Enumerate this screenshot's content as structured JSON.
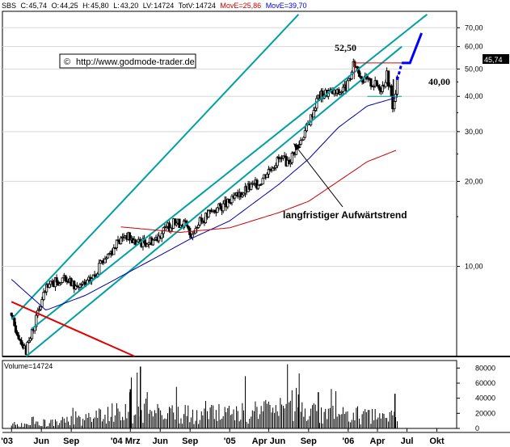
{
  "header": {
    "symbol": "SBS",
    "c_label": "C:",
    "c_value": "45,74",
    "o_label": "O:",
    "o_value": "44,25",
    "h_label": "H:",
    "h_value": "45,80",
    "l_label": "L:",
    "l_value": "43,20",
    "lv_label": "LV:",
    "lv_value": "14724",
    "totv_label": "TotV:",
    "totv_value": "14724",
    "ma1_label": "MovE=",
    "ma1_value": "25,86",
    "ma2_label": "MovE=",
    "ma2_value": "39,70"
  },
  "watermark": {
    "symbol": "©",
    "text": "http://www.godmode-trader.de"
  },
  "annotations": [
    {
      "text": "52,50"
    },
    {
      "text": "40,00"
    },
    {
      "text": "langfristiger Aufwärtstrend"
    }
  ],
  "last_price_tag": "45,74",
  "volume_label": "Volume=14724",
  "colors": {
    "candles": "#000000",
    "channel": "#00a0a0",
    "ma_fast": "#0000aa",
    "ma_slow": "#cc0000",
    "downtrend": "#e00000",
    "projection": "#0000ff",
    "header_red": "#cc0000",
    "header_blue": "#0000cc",
    "last_tag_bg": "#000000",
    "last_tag_fg": "#ffffff"
  },
  "chart_data": {
    "type": "candlestick",
    "scale": "log",
    "price_axis_ticks": [
      "70,00",
      "60,00",
      "50,00",
      "40,00",
      "30,00",
      "20,00",
      "10,00"
    ],
    "price_axis_values": [
      70,
      60,
      50,
      40,
      30,
      20,
      10
    ],
    "ylim": [
      4.8,
      80
    ],
    "volume_axis_ticks": [
      "80000",
      "60000",
      "40000",
      "20000",
      "0"
    ],
    "volume_axis_values": [
      80000,
      60000,
      40000,
      20000,
      0
    ],
    "x_tick_labels": [
      "'03",
      "Jun",
      "Sep",
      "'04 Mrz",
      "Jun",
      "Sep",
      "'05",
      "Apr Jun",
      "Sep",
      "'06",
      "Apr",
      "Jul",
      "Okt"
    ],
    "price_path": [
      [
        "2003-03-01",
        6.5
      ],
      [
        "2003-04-15",
        5.0
      ],
      [
        "2003-05-15",
        6.5
      ],
      [
        "2003-06-15",
        8.3
      ],
      [
        "2003-07-15",
        8.8
      ],
      [
        "2003-08-15",
        9.0
      ],
      [
        "2003-09-15",
        8.5
      ],
      [
        "2003-10-15",
        8.6
      ],
      [
        "2003-11-15",
        9.4
      ],
      [
        "2003-12-15",
        10.8
      ],
      [
        "2004-01-15",
        11.8
      ],
      [
        "2004-02-15",
        13.0
      ],
      [
        "2004-03-15",
        12.2
      ],
      [
        "2004-04-15",
        12.2
      ],
      [
        "2004-05-15",
        12.5
      ],
      [
        "2004-06-15",
        13.5
      ],
      [
        "2004-07-15",
        14.3
      ],
      [
        "2004-08-15",
        14.2
      ],
      [
        "2004-09-01",
        13.0
      ],
      [
        "2004-10-01",
        14.3
      ],
      [
        "2004-11-01",
        15.5
      ],
      [
        "2004-12-01",
        16.2
      ],
      [
        "2005-01-01",
        16.8
      ],
      [
        "2005-02-01",
        18.0
      ],
      [
        "2005-03-01",
        19.0
      ],
      [
        "2005-04-01",
        19.7
      ],
      [
        "2005-05-01",
        22.0
      ],
      [
        "2005-06-01",
        24.0
      ],
      [
        "2005-07-01",
        23.5
      ],
      [
        "2005-08-01",
        27.0
      ],
      [
        "2005-09-01",
        32.0
      ],
      [
        "2005-10-01",
        40.0
      ],
      [
        "2005-11-01",
        41.5
      ],
      [
        "2005-12-01",
        41.0
      ],
      [
        "2006-01-01",
        44.0
      ],
      [
        "2006-01-20",
        52.5
      ],
      [
        "2006-02-15",
        46.0
      ],
      [
        "2006-03-15",
        44.5
      ],
      [
        "2006-04-15",
        43.0
      ],
      [
        "2006-05-01",
        48.0
      ],
      [
        "2006-05-20",
        36.0
      ],
      [
        "2006-06-01",
        45.74
      ]
    ],
    "ma_fast_path": [
      [
        "2003-03-01",
        9.0
      ],
      [
        "2003-06-15",
        7.0
      ],
      [
        "2003-10-15",
        7.9
      ],
      [
        "2004-03-15",
        9.8
      ],
      [
        "2004-09-01",
        12.5
      ],
      [
        "2005-01-01",
        14.5
      ],
      [
        "2005-06-01",
        19.5
      ],
      [
        "2005-09-01",
        24.0
      ],
      [
        "2005-12-01",
        31.0
      ],
      [
        "2006-03-01",
        37.0
      ],
      [
        "2006-06-01",
        39.7
      ]
    ],
    "ma_slow_path": [
      [
        "2004-02-01",
        13.8
      ],
      [
        "2004-08-01",
        13.2
      ],
      [
        "2005-01-01",
        13.7
      ],
      [
        "2005-06-01",
        15.5
      ],
      [
        "2005-09-01",
        17.0
      ],
      [
        "2005-12-01",
        20.0
      ],
      [
        "2006-03-01",
        23.5
      ],
      [
        "2006-06-01",
        25.86
      ]
    ],
    "channel_lower": [
      [
        "2003-04-15",
        4.8
      ],
      [
        "2006-06-15",
        60.0
      ]
    ],
    "channel_upper": [
      [
        "2003-03-01",
        6.5
      ],
      [
        "2005-08-01",
        78.0
      ]
    ],
    "channel_extra": [
      [
        "2003-05-01",
        6.0
      ],
      [
        "2006-09-01",
        78.0
      ]
    ],
    "downtrend_line": [
      [
        "2003-03-01",
        7.5
      ],
      [
        "2004-03-15",
        4.8
      ]
    ],
    "resistance_line": [
      [
        "2006-01-20",
        52.5
      ],
      [
        "2006-07-01",
        52.5
      ]
    ],
    "support_line": [
      [
        "2006-03-01",
        40.0
      ],
      [
        "2006-06-15",
        40.0
      ]
    ],
    "projection_path": [
      [
        "2006-06-01",
        45.74
      ],
      [
        "2006-06-15",
        52.5
      ],
      [
        "2006-07-10",
        52.5
      ],
      [
        "2006-08-15",
        67.0
      ]
    ],
    "volume_profile": [
      [
        "2003-03-01",
        5000
      ],
      [
        "2003-09-01",
        10000
      ],
      [
        "2004-01-01",
        20000
      ],
      [
        "2004-06-01",
        22000
      ],
      [
        "2004-09-01",
        18000
      ],
      [
        "2005-02-01",
        20000
      ],
      [
        "2005-06-01",
        24000
      ],
      [
        "2005-09-01",
        22000
      ],
      [
        "2006-01-01",
        18000
      ],
      [
        "2006-05-01",
        15000
      ],
      [
        "2006-06-01",
        14724
      ]
    ],
    "volume_spikes": [
      [
        "2004-04-01",
        82000
      ],
      [
        "2004-03-01",
        52000
      ],
      [
        "2005-10-01",
        48000
      ],
      [
        "2006-05-25",
        46000
      ],
      [
        "2005-08-01",
        45000
      ]
    ]
  }
}
